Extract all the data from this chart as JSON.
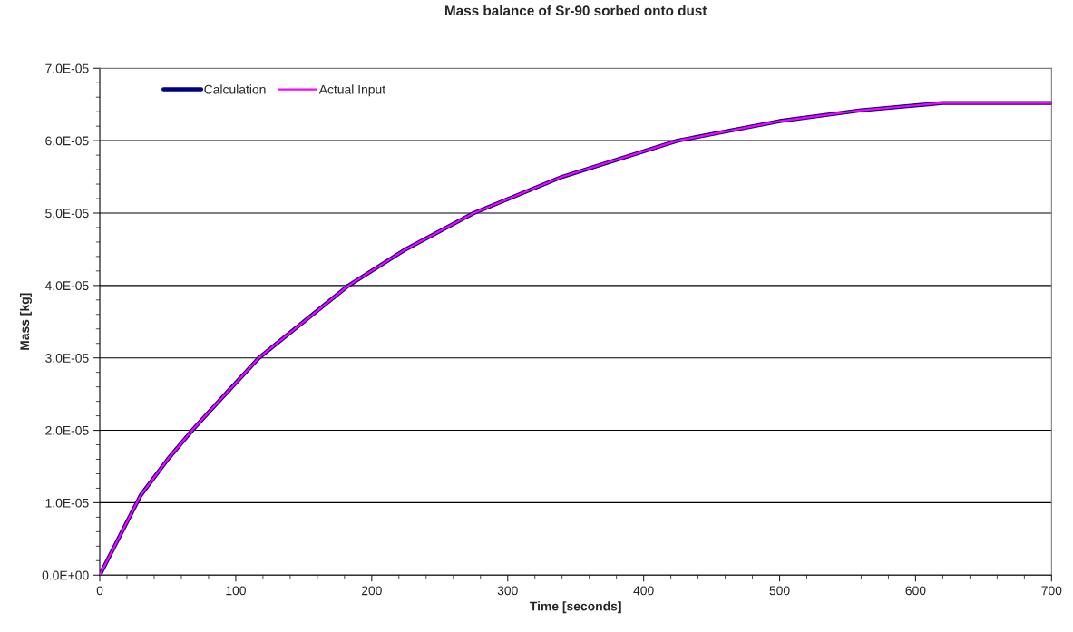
{
  "chart_data": {
    "type": "line",
    "title": "Mass balance of Sr-90 sorbed onto dust",
    "xlabel": "Time [seconds]",
    "ylabel": "Mass [kg]",
    "x": [
      0,
      15,
      30,
      50,
      68,
      90,
      117,
      150,
      183,
      225,
      275,
      340,
      425,
      500,
      560,
      620,
      700
    ],
    "series": [
      {
        "name": "Calculation",
        "color": "#000080",
        "values": [
          0,
          5.5e-06,
          1.1e-05,
          1.6e-05,
          2e-05,
          2.45e-05,
          3e-05,
          3.5e-05,
          4e-05,
          4.5e-05,
          5e-05,
          5.5e-05,
          6e-05,
          6.27e-05,
          6.42e-05,
          6.52e-05,
          6.52e-05
        ]
      },
      {
        "name": "Actual Input",
        "color": "#ff00ff",
        "values": [
          0,
          5.5e-06,
          1.1e-05,
          1.6e-05,
          2e-05,
          2.45e-05,
          3e-05,
          3.5e-05,
          4e-05,
          4.5e-05,
          5e-05,
          5.5e-05,
          6e-05,
          6.27e-05,
          6.42e-05,
          6.52e-05,
          6.52e-05
        ]
      }
    ],
    "xlim": [
      0,
      700
    ],
    "ylim": [
      0,
      7e-05
    ],
    "xticks": [
      0,
      {
        "value": 20,
        "label": null
      },
      {
        "value": 40,
        "label": null
      },
      {
        "value": 60,
        "label": null
      },
      {
        "value": 80,
        "label": null
      },
      100,
      {
        "value": 120,
        "label": null
      },
      {
        "value": 140,
        "label": null
      },
      {
        "value": 160,
        "label": null
      },
      {
        "value": 180,
        "label": null
      },
      200,
      {
        "value": 220,
        "label": null
      },
      {
        "value": 240,
        "label": null
      },
      {
        "value": 260,
        "label": null
      },
      {
        "value": 280,
        "label": null
      },
      300,
      {
        "value": 320,
        "label": null
      },
      {
        "value": 340,
        "label": null
      },
      {
        "value": 360,
        "label": null
      },
      {
        "value": 380,
        "label": null
      },
      400,
      {
        "value": 420,
        "label": null
      },
      {
        "value": 440,
        "label": null
      },
      {
        "value": 460,
        "label": null
      },
      {
        "value": 480,
        "label": null
      },
      500,
      {
        "value": 520,
        "label": null
      },
      {
        "value": 540,
        "label": null
      },
      {
        "value": 560,
        "label": null
      },
      {
        "value": 580,
        "label": null
      },
      600,
      {
        "value": 620,
        "label": null
      },
      {
        "value": 640,
        "label": null
      },
      {
        "value": 660,
        "label": null
      },
      {
        "value": 680,
        "label": null
      },
      700
    ],
    "yticks": [
      {
        "value": 0,
        "label": "0.0E+00"
      },
      {
        "value": 2e-06,
        "label": null
      },
      {
        "value": 4e-06,
        "label": null
      },
      {
        "value": 6e-06,
        "label": null
      },
      {
        "value": 8e-06,
        "label": null
      },
      {
        "value": 1e-05,
        "label": "1.0E-05"
      },
      {
        "value": 1.2e-05,
        "label": null
      },
      {
        "value": 1.4e-05,
        "label": null
      },
      {
        "value": 1.6e-05,
        "label": null
      },
      {
        "value": 1.8e-05,
        "label": null
      },
      {
        "value": 2e-05,
        "label": "2.0E-05"
      },
      {
        "value": 2.2e-05,
        "label": null
      },
      {
        "value": 2.4e-05,
        "label": null
      },
      {
        "value": 2.6e-05,
        "label": null
      },
      {
        "value": 2.8e-05,
        "label": null
      },
      {
        "value": 3e-05,
        "label": "3.0E-05"
      },
      {
        "value": 3.2e-05,
        "label": null
      },
      {
        "value": 3.4e-05,
        "label": null
      },
      {
        "value": 3.6e-05,
        "label": null
      },
      {
        "value": 3.8e-05,
        "label": null
      },
      {
        "value": 4e-05,
        "label": "4.0E-05"
      },
      {
        "value": 4.2e-05,
        "label": null
      },
      {
        "value": 4.4e-05,
        "label": null
      },
      {
        "value": 4.6e-05,
        "label": null
      },
      {
        "value": 4.8e-05,
        "label": null
      },
      {
        "value": 5e-05,
        "label": "5.0E-05"
      },
      {
        "value": 5.2e-05,
        "label": null
      },
      {
        "value": 5.4e-05,
        "label": null
      },
      {
        "value": 5.6e-05,
        "label": null
      },
      {
        "value": 5.8e-05,
        "label": null
      },
      {
        "value": 6e-05,
        "label": "6.0E-05"
      },
      {
        "value": 6.2e-05,
        "label": null
      },
      {
        "value": 6.4e-05,
        "label": null
      },
      {
        "value": 6.6e-05,
        "label": null
      },
      {
        "value": 6.8e-05,
        "label": null
      },
      {
        "value": 7e-05,
        "label": "7.0E-05"
      }
    ],
    "grid": "y",
    "legend": "top left",
    "marker": "none",
    "line_style": "solid"
  }
}
